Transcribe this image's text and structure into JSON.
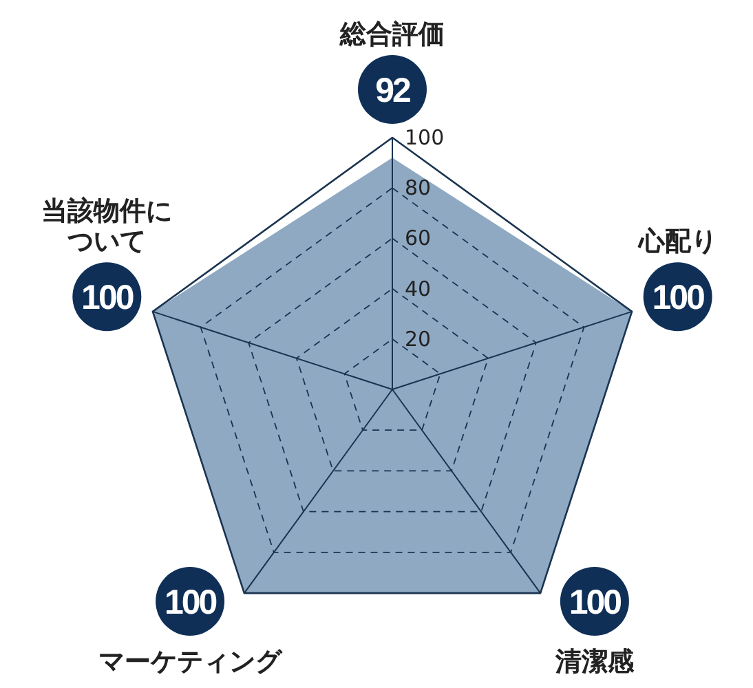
{
  "chart_data": {
    "type": "radar",
    "categories": [
      "総合評価",
      "心配り",
      "清潔感",
      "マーケティング",
      "当該物件について"
    ],
    "series": [
      {
        "color": "#8fa9c3",
        "values": [
          92,
          100,
          100,
          100,
          100
        ]
      }
    ],
    "ylim": [
      0,
      100
    ],
    "yticks": [
      20,
      40,
      60,
      80,
      100
    ],
    "grid": true,
    "data_labels": true
  }
}
